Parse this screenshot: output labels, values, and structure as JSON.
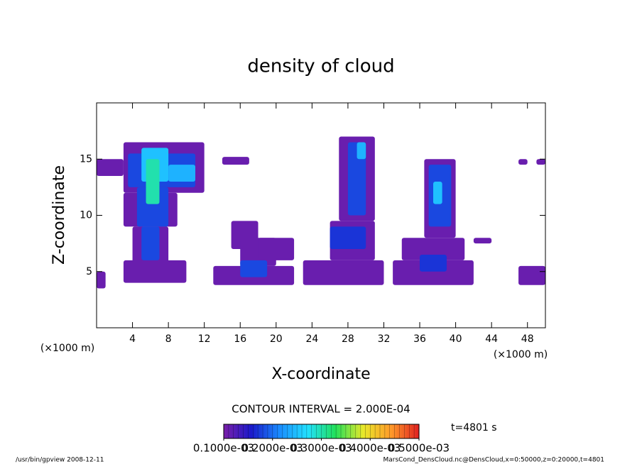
{
  "chart_data": {
    "type": "filled-contour",
    "title": "density of cloud",
    "x_label": "X-coordinate",
    "y_label": "Z-coordinate",
    "x_unit": "(×1000 m)",
    "y_unit": "(×1000 m)",
    "xlim": [
      0,
      50
    ],
    "ylim": [
      0,
      20
    ],
    "xticks": [
      4,
      8,
      12,
      16,
      20,
      24,
      28,
      32,
      36,
      40,
      44,
      48
    ],
    "yticks": [
      5,
      10,
      15
    ],
    "contour_interval": "CONTOUR INTERVAL = 2.000E-04",
    "time_label": "t=4801 s",
    "colorbar": {
      "lim": [
        0.0001,
        0.0005
      ],
      "colors": [
        "#7a1fa8",
        "#1a1acc",
        "#1a8cff",
        "#22e0ff",
        "#22e05a",
        "#e8e82a",
        "#ff9a2a",
        "#e02020"
      ],
      "ticks": [
        {
          "value": 0.0001,
          "label": "0.1000e-03"
        },
        {
          "value": 0.0002,
          "label": "0.2000e-03"
        },
        {
          "value": 0.0003,
          "label": "0.3000e-03"
        },
        {
          "value": 0.0004,
          "label": "0.4000e-03"
        },
        {
          "value": 0.0005,
          "label": "0.5000e-03"
        }
      ]
    },
    "regions": [
      [
        0,
        3,
        13.5,
        15,
        0.00011
      ],
      [
        3,
        12,
        12,
        16.5,
        0.00011
      ],
      [
        3,
        9,
        9,
        12,
        0.00011
      ],
      [
        4,
        8,
        5.5,
        9,
        0.00011
      ],
      [
        3,
        10,
        4,
        6,
        0.00011
      ],
      [
        0,
        1,
        3.5,
        5,
        0.00011
      ],
      [
        3.5,
        11,
        12.5,
        15.5,
        0.00018
      ],
      [
        4.5,
        8,
        9,
        12.5,
        0.00018
      ],
      [
        5,
        7,
        6,
        9,
        0.00018
      ],
      [
        5,
        8,
        13,
        16,
        0.00025
      ],
      [
        8,
        11,
        13,
        14.5,
        0.00024
      ],
      [
        5.5,
        7,
        11,
        15,
        0.0003
      ],
      [
        14,
        17,
        14.5,
        15.2,
        0.00011
      ],
      [
        15,
        18,
        7,
        9.5,
        0.00011
      ],
      [
        16,
        20,
        5.5,
        8,
        0.00011
      ],
      [
        13,
        22,
        3.8,
        5.5,
        0.00011
      ],
      [
        18,
        22,
        6,
        8,
        0.00011
      ],
      [
        16,
        19,
        4.5,
        6,
        0.00018
      ],
      [
        23,
        32,
        3.8,
        6,
        0.00011
      ],
      [
        26,
        31,
        6,
        9.5,
        0.00011
      ],
      [
        27,
        31,
        9.5,
        17,
        0.00011
      ],
      [
        28,
        30,
        10,
        16.5,
        0.00018
      ],
      [
        29,
        30,
        15,
        16.5,
        0.00024
      ],
      [
        26,
        30,
        7,
        9,
        0.00017
      ],
      [
        33,
        42,
        3.8,
        6,
        0.00011
      ],
      [
        34,
        41,
        6,
        8,
        0.00011
      ],
      [
        36.5,
        40,
        8,
        15,
        0.00011
      ],
      [
        37,
        39.5,
        9,
        14.5,
        0.00018
      ],
      [
        37.5,
        38.5,
        11,
        13,
        0.00025
      ],
      [
        36,
        39,
        5,
        6.5,
        0.00017
      ],
      [
        42,
        44,
        7.5,
        8,
        0.00011
      ],
      [
        47,
        48,
        14.5,
        15,
        0.00011
      ],
      [
        49,
        50,
        14.5,
        15,
        0.00011
      ],
      [
        47,
        50,
        3.8,
        5.5,
        0.00011
      ]
    ],
    "footer_left": "/usr/bin/gpview  2008-12-11",
    "footer_right": "MarsCond_DensCloud.nc@DensCloud,x=0:50000,z=0:20000,t=4801"
  }
}
